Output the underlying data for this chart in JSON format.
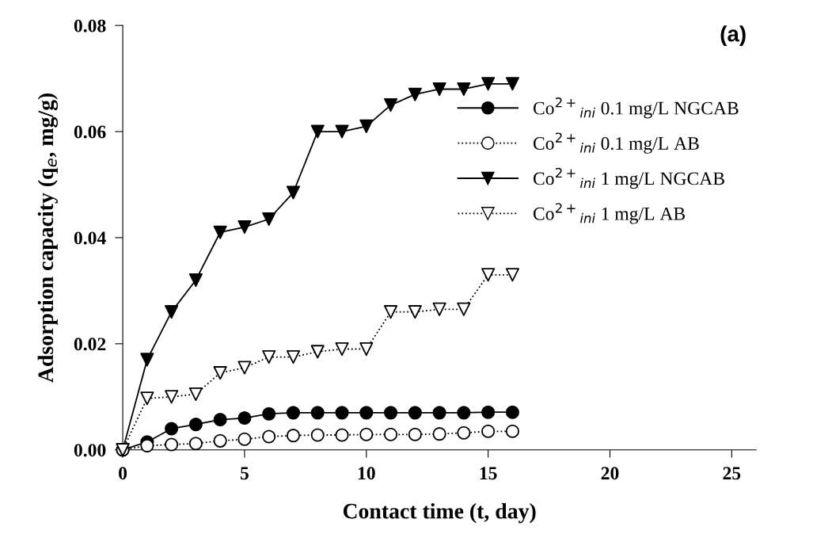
{
  "chart_data": {
    "type": "line",
    "xlabel": "Contact time (t, day)",
    "ylabel": "Adsorption capacity (q$_{e}$, mg/g)",
    "annotations": [
      "(a)"
    ],
    "x": [
      0,
      1,
      2,
      3,
      4,
      5,
      6,
      7,
      8,
      9,
      10,
      11,
      12,
      13,
      14,
      15,
      16
    ],
    "xlim": [
      0,
      26
    ],
    "xticks": [
      0,
      5,
      10,
      15,
      20,
      25
    ],
    "ylim": [
      0,
      0.08
    ],
    "yticks": [
      {
        "value": 0,
        "label": "0.00"
      },
      {
        "value": 0.02,
        "label": "0.02"
      },
      {
        "value": 0.04,
        "label": "0.04"
      },
      {
        "value": 0.06,
        "label": "0.06"
      },
      {
        "value": 0.08,
        "label": "0.08"
      }
    ],
    "grid": false,
    "legend": "top right",
    "series": [
      {
        "name": "Co$^{2+}$$_{ini}$ 0.1 mg/L NGCAB",
        "color": "#000000",
        "marker": "circle",
        "colors": [
          "#000000",
          "#000000",
          "#000000",
          "#000000",
          "#000000",
          "#000000",
          "#000000",
          "#000000",
          "#000000",
          "#000000",
          "#000000",
          "#000000",
          "#000000",
          "#000000",
          "#000000",
          "#000000",
          "#000000"
        ],
        "line_style": "solid",
        "values": [
          0,
          0.0015,
          0.004,
          0.0048,
          0.0057,
          0.006,
          0.0068,
          0.007,
          0.007,
          0.007,
          0.007,
          0.007,
          0.007,
          0.007,
          0.007,
          0.0071,
          0.0071
        ]
      },
      {
        "name": "Co$^{2+}$$_{ini}$ 0.1 mg/L AB",
        "color": "#000000",
        "marker": "circle",
        "colors": [
          "#ffffff",
          "#ffffff",
          "#ffffff",
          "#ffffff",
          "#ffffff",
          "#ffffff",
          "#ffffff",
          "#ffffff",
          "#ffffff",
          "#ffffff",
          "#ffffff",
          "#ffffff",
          "#ffffff",
          "#ffffff",
          "#ffffff",
          "#ffffff",
          "#ffffff"
        ],
        "line_style": "dotted",
        "values": [
          0,
          0.0008,
          0.001,
          0.0012,
          0.0017,
          0.002,
          0.0025,
          0.0027,
          0.0028,
          0.0028,
          0.0029,
          0.0029,
          0.0029,
          0.003,
          0.0032,
          0.0035,
          0.0035
        ]
      },
      {
        "name": "Co$^{2+}$$_{ini}$ 1 mg/L NGCAB",
        "color": "#000000",
        "marker": "triangle",
        "colors": [
          "#000000",
          "#000000",
          "#000000",
          "#000000",
          "#000000",
          "#000000",
          "#000000",
          "#000000",
          "#000000",
          "#000000",
          "#000000",
          "#000000",
          "#000000",
          "#000000",
          "#000000",
          "#000000",
          "#000000"
        ],
        "line_style": "solid",
        "values": [
          0,
          0.017,
          0.026,
          0.032,
          0.041,
          0.042,
          0.0435,
          0.0485,
          0.06,
          0.06,
          0.061,
          0.065,
          0.067,
          0.068,
          0.068,
          0.069,
          0.069
        ]
      },
      {
        "name": "Co$^{2+}$$_{ini}$ 1 mg/L AB",
        "color": "#000000",
        "marker": "triangle",
        "colors": [
          "#ffffff",
          "#ffffff",
          "#ffffff",
          "#ffffff",
          "#ffffff",
          "#ffffff",
          "#ffffff",
          "#ffffff",
          "#ffffff",
          "#ffffff",
          "#ffffff",
          "#ffffff",
          "#ffffff",
          "#ffffff",
          "#ffffff",
          "#ffffff",
          "#ffffff"
        ],
        "line_style": "dotted",
        "values": [
          0,
          0.0097,
          0.01,
          0.0105,
          0.0145,
          0.0155,
          0.0175,
          0.0175,
          0.0185,
          0.019,
          0.019,
          0.026,
          0.026,
          0.0265,
          0.0265,
          0.033,
          0.033
        ]
      }
    ]
  }
}
